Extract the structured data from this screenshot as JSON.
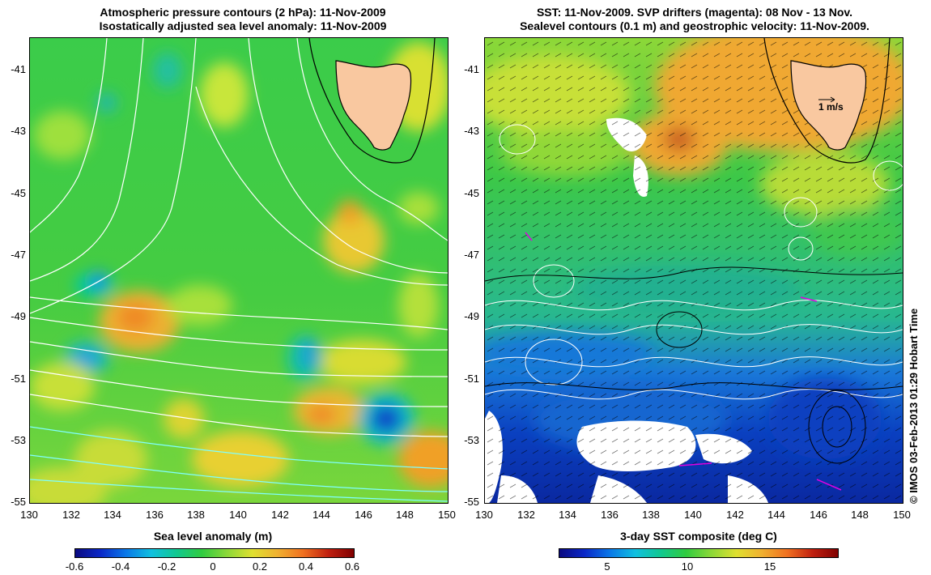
{
  "left_panel": {
    "title_line1": "Atmospheric pressure contours (2 hPa): 11-Nov-2009",
    "title_line2": "Isostatically adjusted sea level anomaly: 11-Nov-2009",
    "colorbar_label": "Sea level anomaly (m)",
    "colorbar_ticks": [
      "-0.6",
      "-0.4",
      "-0.2",
      "0",
      "0.2",
      "0.4",
      "0.6"
    ]
  },
  "right_panel": {
    "title_line1": "SST: 11-Nov-2009. SVP drifters (magenta): 08 Nov - 13 Nov.",
    "title_line2": "Sealevel contours (0.1 m) and geostrophic velocity: 11-Nov-2009.",
    "colorbar_label": "3-day SST composite (deg C)",
    "colorbar_ticks": [
      "5",
      "10",
      "15"
    ],
    "velocity_scale_label": "1 m/s"
  },
  "map": {
    "y_ticks": [
      "-41",
      "-43",
      "-45",
      "-47",
      "-49",
      "-51",
      "-53",
      "-55"
    ],
    "x_ticks": [
      "130",
      "132",
      "134",
      "136",
      "138",
      "140",
      "142",
      "144",
      "146",
      "148",
      "150"
    ]
  },
  "credit": "© IMOS 03-Feb-2013 01:29 Hobart Time",
  "colors": {
    "land": "#f9c8a0",
    "ocean_mid": "#33cc44",
    "sst_cold": "#0a3cc8",
    "sst_warm": "#f5a030"
  }
}
